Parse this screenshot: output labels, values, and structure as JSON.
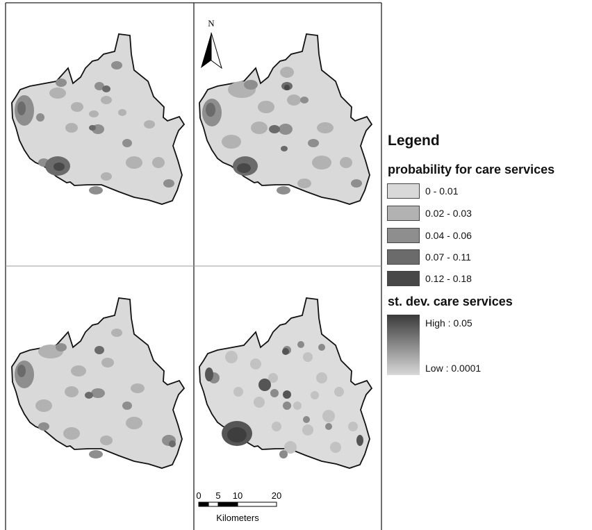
{
  "north_arrow": {
    "label": "N"
  },
  "scale_bar": {
    "ticks": [
      "0",
      "5",
      "10",
      "20"
    ],
    "units": "Kilometers"
  },
  "legend": {
    "title": "Legend",
    "probability": {
      "title": "probability for care services",
      "classes": [
        {
          "label": "0 - 0.01",
          "color": "#d9d9d9"
        },
        {
          "label": "0.02 - 0.03",
          "color": "#b2b2b2"
        },
        {
          "label": "0.04 - 0.06",
          "color": "#8e8e8e"
        },
        {
          "label": "0.07 - 0.11",
          "color": "#6b6b6b"
        },
        {
          "label": "0.12 - 0.18",
          "color": "#484848"
        }
      ]
    },
    "stdev": {
      "title": "st. dev. care services",
      "high": "High : 0.05",
      "low": "Low : 0.0001",
      "high_color": "#3a3a3a",
      "low_color": "#d8d8d8"
    }
  },
  "colors": {
    "region_fill": "#d9d9d9",
    "stdev_fill": "#dcdcdc",
    "frame": "#222222"
  }
}
